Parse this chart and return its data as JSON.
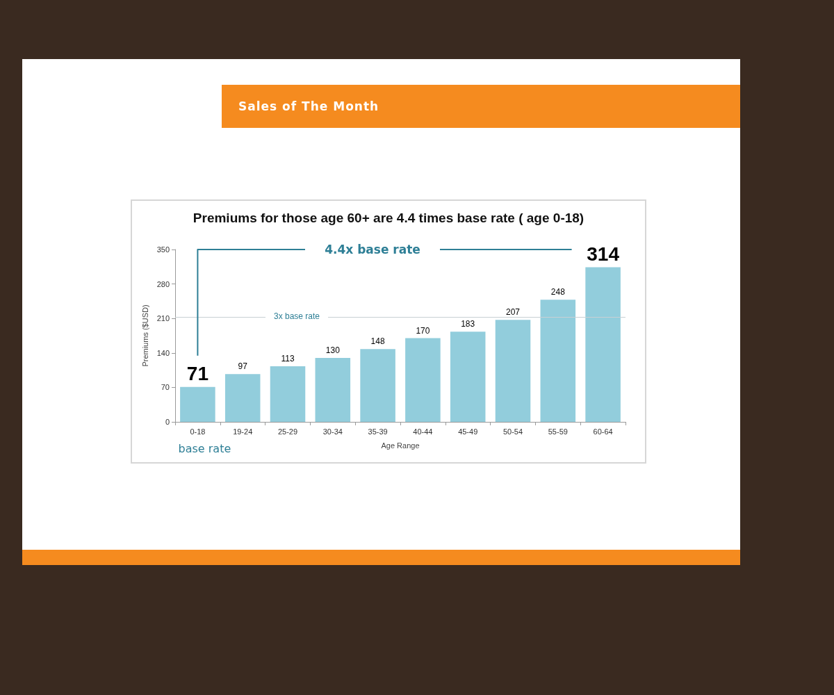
{
  "chart_data": {
    "type": "bar",
    "title": "Premiums for those age 60+ are 4.4 times base rate ( age 0-18)",
    "subtitle": "Sales of The Month",
    "xlabel": "Age Range",
    "ylabel": "Premiums ($USD)",
    "categories": [
      "0-18",
      "19-24",
      "25-29",
      "30-34",
      "35-39",
      "40-44",
      "45-49",
      "50-54",
      "55-59",
      "60-64"
    ],
    "values": [
      71,
      97,
      113,
      130,
      148,
      170,
      183,
      207,
      248,
      314
    ],
    "color": "#92cddc",
    "ylim": [
      0,
      350
    ],
    "yticks": [
      0,
      70,
      140,
      210,
      280,
      350
    ],
    "grid": false,
    "data_labels": true,
    "ref_lines": [
      {
        "axis": "y",
        "value": 213,
        "label": "3x base rate",
        "color": "#c8d0d4"
      }
    ],
    "annotations": [
      "4.4x base rate",
      "base rate"
    ]
  }
}
